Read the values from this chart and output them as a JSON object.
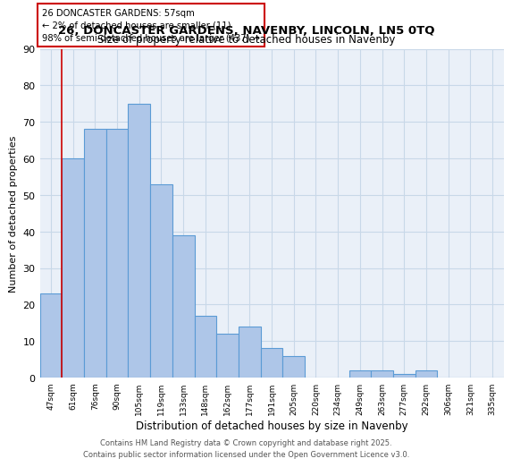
{
  "title1": "26, DONCASTER GARDENS, NAVENBY, LINCOLN, LN5 0TQ",
  "title2": "Size of property relative to detached houses in Navenby",
  "xlabel": "Distribution of detached houses by size in Navenby",
  "ylabel": "Number of detached properties",
  "categories": [
    "47sqm",
    "61sqm",
    "76sqm",
    "90sqm",
    "105sqm",
    "119sqm",
    "133sqm",
    "148sqm",
    "162sqm",
    "177sqm",
    "191sqm",
    "205sqm",
    "220sqm",
    "234sqm",
    "249sqm",
    "263sqm",
    "277sqm",
    "292sqm",
    "306sqm",
    "321sqm",
    "335sqm"
  ],
  "values": [
    23,
    60,
    68,
    68,
    75,
    53,
    39,
    17,
    12,
    14,
    8,
    6,
    0,
    0,
    2,
    2,
    1,
    2,
    0,
    0,
    0
  ],
  "bar_color": "#aec6e8",
  "bar_edge_color": "#5b9bd5",
  "grid_color": "#c8d8e8",
  "bg_color": "#eaf0f8",
  "red_line_x": 0.5,
  "annotation_text": "26 DONCASTER GARDENS: 57sqm\n← 2% of detached houses are smaller (11)\n98% of semi-detached houses are larger (437) →",
  "annotation_box_color": "#ffffff",
  "annotation_box_edge": "#cc0000",
  "footer": "Contains HM Land Registry data © Crown copyright and database right 2025.\nContains public sector information licensed under the Open Government Licence v3.0.",
  "ylim": [
    0,
    90
  ],
  "yticks": [
    0,
    10,
    20,
    30,
    40,
    50,
    60,
    70,
    80,
    90
  ]
}
